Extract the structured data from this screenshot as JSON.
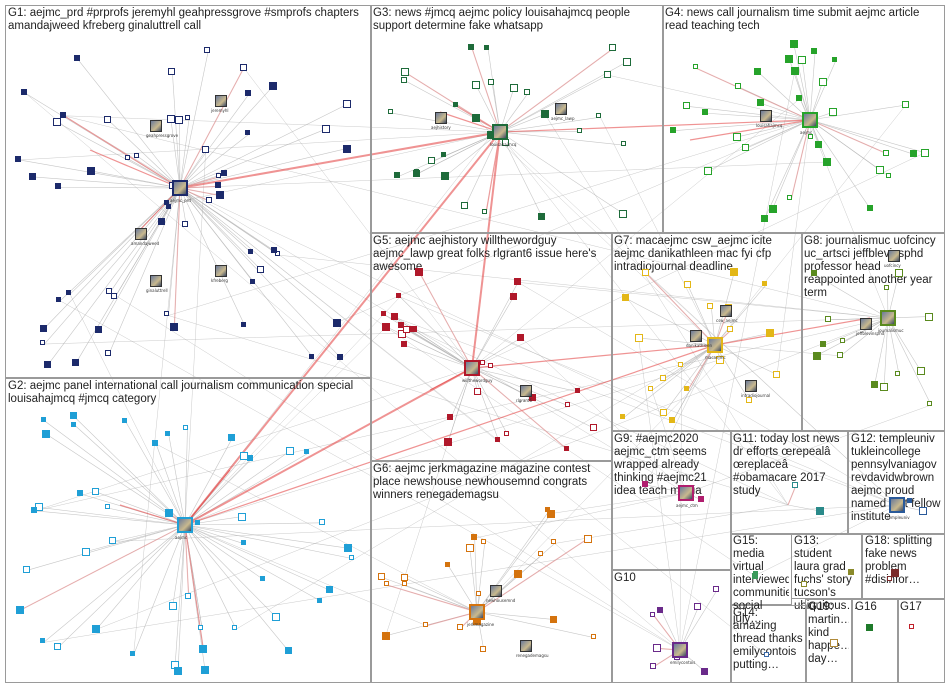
{
  "graph": {
    "title": "",
    "groups": [
      {
        "id": "G1",
        "label": "G1: aejmc_prd #prprofs jeremyhl geahpressgrove #smprofs chapters amandajweed kfreberg ginaluttrell call",
        "color": "#1c2a6b"
      },
      {
        "id": "G2",
        "label": "G2: aejmc panel international call journalism communication special louisahajmcq #jmcq category",
        "color": "#1f9fd6"
      },
      {
        "id": "G3",
        "label": "G3: news #jmcq aejmc policy louisahajmcq people support determine fake whatsapp",
        "color": "#1e6b3a"
      },
      {
        "id": "G4",
        "label": "G4: news call journalism time submit aejmc article read teaching tech",
        "color": "#26a32a"
      },
      {
        "id": "G5",
        "label": "G5: aejmc aejhistory willthewordguy aejmc_lawp great folks rlgrant6 issue here's awesome",
        "color": "#b0182a"
      },
      {
        "id": "G6",
        "label": "G6: aejmc jerkmagazine magazine contest place newshouse newhousemnd congrats winners renegademagsu",
        "color": "#d4730e"
      },
      {
        "id": "G7",
        "label": "G7: macaejmc csw_aejmc icite aejmc danikathleen mac fyi cfp intradiojournal deadline",
        "color": "#e3b717"
      },
      {
        "id": "G8",
        "label": "G8: journalismuc uofcincy uc_artsci jeffblevinsphd professor head reappointed another year term",
        "color": "#5a8a1e"
      },
      {
        "id": "G9",
        "label": "G9: #aejmc2020 aejmc_ctm seems wrapped already thinking #aejmc21 idea teach media",
        "color": "#b01e6e"
      },
      {
        "id": "G10",
        "label": "G10",
        "color": "#6a2a8a"
      },
      {
        "id": "G11",
        "label": "G11: today lost news dr efforts œrepealâ œreplaceâ #obamacare 2017 study",
        "color": "#2a8a8a"
      },
      {
        "id": "G12",
        "label": "G12: templeuniv tukleincollege pennsylvaniagov revdavidwbrown aejmc proud named first fellow institute",
        "color": "#2a5a9a"
      },
      {
        "id": "G13",
        "label": "G13: student laura grad fuchs' story tucson's ubiquitous…",
        "color": "#8a8a2a"
      },
      {
        "id": "G14",
        "label": "G14: amazing thread thanks emilycontois putting…",
        "color": "#3a6aaa"
      },
      {
        "id": "G15",
        "label": "G15: media virtual interviewed communities social july…",
        "color": "#3a9a5a"
      },
      {
        "id": "G16",
        "label": "G16",
        "color": "#1e7a2a"
      },
      {
        "id": "G17",
        "label": "G17",
        "color": "#c0202a"
      },
      {
        "id": "G18",
        "label": "G18: splitting fake news problem #disinfor…",
        "color": "#7a2a2a"
      },
      {
        "id": "G19",
        "label": "G19: martin… kind happe… day…",
        "color": "#b08a3a"
      }
    ],
    "node_labels": [
      "aejmc_prd",
      "jeremyhl",
      "geahpressgrove",
      "amandajweed",
      "kfreberg",
      "ginaluttrell",
      "aejmc",
      "louisahajmcq",
      "aejmc_ctm",
      "willthewordguy",
      "aejhistory",
      "aejmc_lawp",
      "rlgrant6",
      "jerkmagazine",
      "newhousemnd",
      "renegademagsu",
      "macaejmc",
      "csw_aejmc",
      "danikathleen",
      "intradiojournal",
      "journalismuc",
      "uofcincy",
      "jeffblevinsphd",
      "templeuniv",
      "emilycontois"
    ]
  }
}
